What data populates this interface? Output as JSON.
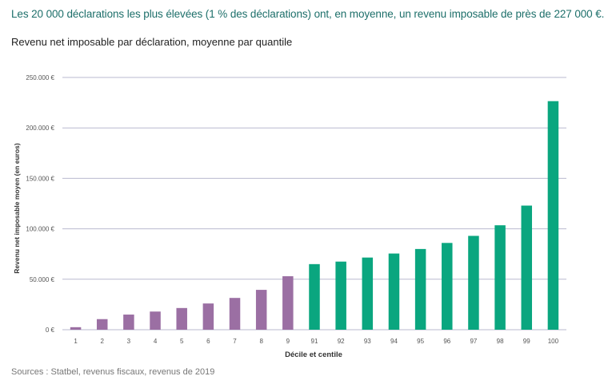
{
  "headline": "Les 20 000 déclarations les plus élevées (1 % des déclarations) ont, en moyenne, un revenu imposable de près de 227 000 €.",
  "subtitle": "Revenu net imposable par déclaration, moyenne par quantile",
  "source": "Sources : Statbel, revenus fiscaux, revenus de 2019",
  "colors": {
    "headline": "#1d6f6a",
    "decile_bar": "#9b6fa3",
    "centile_bar": "#0aa67f",
    "grid": "#b9b9cf"
  },
  "chart_data": {
    "type": "bar",
    "xlabel": "Décile et centile",
    "ylabel": "Revenu net imposable moyen (en euros)",
    "ylim": [
      0,
      250000
    ],
    "yticks": [
      0,
      50000,
      100000,
      150000,
      200000,
      250000
    ],
    "ytick_labels": [
      "0 €",
      "50.000 €",
      "100.000 €",
      "150.000 €",
      "200.000 €",
      "250.000 €"
    ],
    "grid": true,
    "categories": [
      "1",
      "2",
      "3",
      "4",
      "5",
      "6",
      "7",
      "8",
      "9",
      "91",
      "92",
      "93",
      "94",
      "95",
      "96",
      "97",
      "98",
      "99",
      "100"
    ],
    "values": [
      2500,
      10500,
      15000,
      18000,
      21500,
      26000,
      31500,
      39500,
      53000,
      65000,
      67500,
      71500,
      75500,
      80000,
      86000,
      93000,
      103500,
      123000,
      226500
    ],
    "series_groups": [
      "decile",
      "decile",
      "decile",
      "decile",
      "decile",
      "decile",
      "decile",
      "decile",
      "decile",
      "centile",
      "centile",
      "centile",
      "centile",
      "centile",
      "centile",
      "centile",
      "centile",
      "centile",
      "centile"
    ]
  }
}
